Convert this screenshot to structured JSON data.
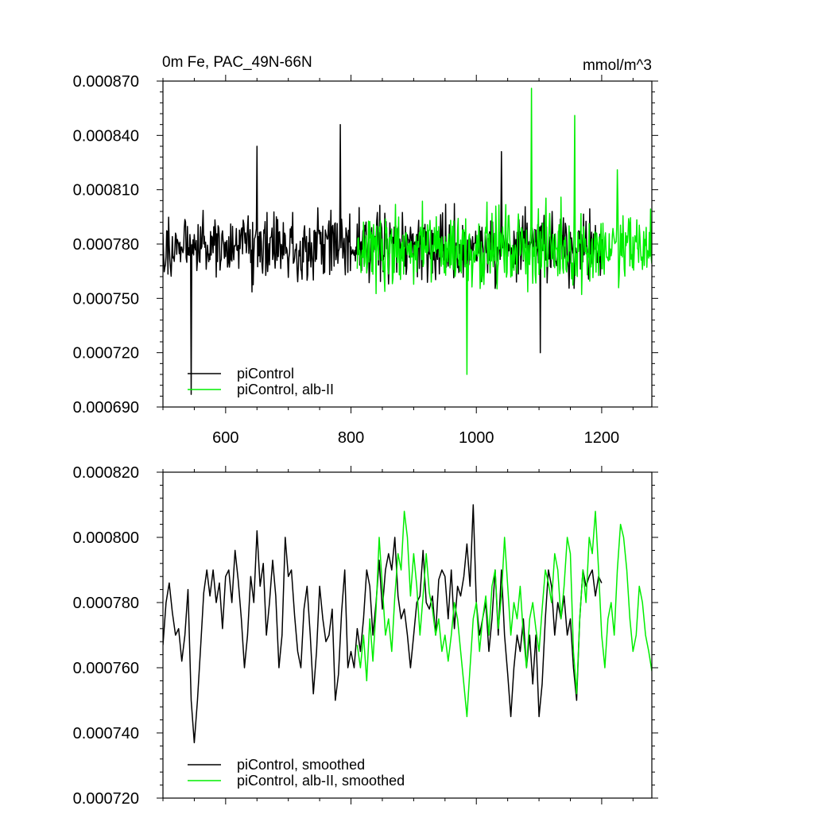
{
  "figure": {
    "title_left": "0m Fe, PAC_49N-66N",
    "title_right": "mmol/m^3"
  },
  "colors": {
    "picontrol": "#000000",
    "alb_ii": "#00ee00"
  },
  "chart_data": [
    {
      "type": "line",
      "title": "0m Fe, PAC_49N-66N",
      "units": "mmol/m^3",
      "xlim": [
        500,
        1280
      ],
      "ylim": [
        0.00069,
        0.00087
      ],
      "xticks": [
        600,
        800,
        1000,
        1200
      ],
      "xtick_labels": [
        "600",
        "800",
        "1000",
        "1200"
      ],
      "yticks": [
        0.00069,
        0.00072,
        0.00075,
        0.00078,
        0.00081,
        0.00084,
        0.00087
      ],
      "ytick_labels": [
        "0.000690",
        "0.000720",
        "0.000750",
        "0.000780",
        "0.000810",
        "0.000840",
        "0.000870"
      ],
      "legend_position": "bottom-left",
      "series": [
        {
          "name": "piControl",
          "color": "#000000",
          "x_start": 500,
          "x_end": 1200,
          "mean": 0.000778,
          "amplitude": 2.4e-05,
          "highlights": [
            [
              545,
              0.000697
            ],
            [
              783,
              0.000846
            ],
            [
              650,
              0.000834
            ],
            [
              1102,
              0.00072
            ],
            [
              1040,
              0.000831
            ]
          ]
        },
        {
          "name": "piControl, alb-II",
          "color": "#00ee00",
          "x_start": 810,
          "x_end": 1280,
          "mean": 0.000778,
          "amplitude": 2.7e-05,
          "highlights": [
            [
              1088,
              0.000866
            ],
            [
              1157,
              0.000851
            ],
            [
              985,
              0.000708
            ],
            [
              1225,
              0.000821
            ]
          ]
        }
      ]
    },
    {
      "type": "line",
      "xlim": [
        500,
        1280
      ],
      "ylim": [
        0.00072,
        0.00082
      ],
      "xticks": [
        600,
        800,
        1000,
        1200
      ],
      "yticks": [
        0.00072,
        0.00074,
        0.00076,
        0.00078,
        0.0008,
        0.00082
      ],
      "ytick_labels": [
        "0.000720",
        "0.000740",
        "0.000760",
        "0.000780",
        "0.000800",
        "0.000820"
      ],
      "legend_position": "bottom-left",
      "series": [
        {
          "name": "piControl, smoothed",
          "color": "#000000",
          "keypoints": [
            [
              500,
              0.000767
            ],
            [
              505,
              0.00078
            ],
            [
              510,
              0.000786
            ],
            [
              515,
              0.000777
            ],
            [
              520,
              0.00077
            ],
            [
              525,
              0.000772
            ],
            [
              530,
              0.000762
            ],
            [
              535,
              0.00077
            ],
            [
              540,
              0.000784
            ],
            [
              545,
              0.00075
            ],
            [
              550,
              0.000737
            ],
            [
              555,
              0.00075
            ],
            [
              560,
              0.000766
            ],
            [
              565,
              0.000783
            ],
            [
              570,
              0.00079
            ],
            [
              575,
              0.000782
            ],
            [
              580,
              0.00079
            ],
            [
              585,
              0.00078
            ],
            [
              590,
              0.000786
            ],
            [
              595,
              0.000772
            ],
            [
              600,
              0.000788
            ],
            [
              605,
              0.00079
            ],
            [
              610,
              0.00078
            ],
            [
              615,
              0.000796
            ],
            [
              620,
              0.000787
            ],
            [
              625,
              0.000775
            ],
            [
              630,
              0.00076
            ],
            [
              635,
              0.00077
            ],
            [
              640,
              0.000788
            ],
            [
              645,
              0.00078
            ],
            [
              650,
              0.000802
            ],
            [
              655,
              0.000785
            ],
            [
              660,
              0.000792
            ],
            [
              665,
              0.00077
            ],
            [
              670,
              0.00078
            ],
            [
              675,
              0.000793
            ],
            [
              680,
              0.000782
            ],
            [
              685,
              0.00076
            ],
            [
              690,
              0.00077
            ],
            [
              695,
              0.0008
            ],
            [
              700,
              0.000788
            ],
            [
              705,
              0.00079
            ],
            [
              710,
              0.000776
            ],
            [
              715,
              0.000765
            ],
            [
              720,
              0.00076
            ],
            [
              725,
              0.000778
            ],
            [
              730,
              0.000785
            ],
            [
              735,
              0.00077
            ],
            [
              740,
              0.000752
            ],
            [
              745,
              0.000765
            ],
            [
              750,
              0.000785
            ],
            [
              755,
              0.000775
            ],
            [
              760,
              0.000768
            ],
            [
              765,
              0.00077
            ],
            [
              770,
              0.000778
            ],
            [
              775,
              0.00075
            ],
            [
              780,
              0.000758
            ],
            [
              785,
              0.000777
            ],
            [
              790,
              0.00079
            ],
            [
              795,
              0.00076
            ],
            [
              800,
              0.000765
            ],
            [
              805,
              0.00076
            ],
            [
              810,
              0.000772
            ],
            [
              815,
              0.000765
            ],
            [
              820,
              0.000775
            ],
            [
              825,
              0.00079
            ],
            [
              830,
              0.000785
            ],
            [
              835,
              0.00077
            ],
            [
              840,
              0.00078
            ],
            [
              845,
              0.000793
            ],
            [
              850,
              0.000778
            ],
            [
              855,
              0.00079
            ],
            [
              860,
              0.000795
            ],
            [
              865,
              0.00079
            ],
            [
              870,
              0.0008
            ],
            [
              875,
              0.000782
            ],
            [
              880,
              0.000775
            ],
            [
              885,
              0.000778
            ],
            [
              890,
              0.00077
            ],
            [
              895,
              0.00076
            ],
            [
              900,
              0.00077
            ],
            [
              905,
              0.00078
            ],
            [
              910,
              0.000782
            ],
            [
              915,
              0.000796
            ],
            [
              920,
              0.00078
            ],
            [
              925,
              0.000778
            ],
            [
              930,
              0.000782
            ],
            [
              935,
              0.00077
            ],
            [
              940,
              0.000787
            ],
            [
              945,
              0.00079
            ],
            [
              950,
              0.000788
            ],
            [
              955,
              0.000775
            ],
            [
              960,
              0.00079
            ],
            [
              965,
              0.000772
            ],
            [
              970,
              0.000785
            ],
            [
              975,
              0.000782
            ],
            [
              980,
              0.000788
            ],
            [
              985,
              0.000798
            ],
            [
              990,
              0.000785
            ],
            [
              995,
              0.00081
            ],
            [
              1000,
              0.00078
            ],
            [
              1005,
              0.00077
            ],
            [
              1010,
              0.000775
            ],
            [
              1015,
              0.00078
            ],
            [
              1020,
              0.000765
            ],
            [
              1025,
              0.000775
            ],
            [
              1030,
              0.00079
            ],
            [
              1035,
              0.00077
            ],
            [
              1040,
              0.00079
            ],
            [
              1045,
              0.00077
            ],
            [
              1050,
              0.000758
            ],
            [
              1055,
              0.000745
            ],
            [
              1060,
              0.00076
            ],
            [
              1065,
              0.00077
            ],
            [
              1070,
              0.000765
            ],
            [
              1075,
              0.000775
            ],
            [
              1080,
              0.00076
            ],
            [
              1085,
              0.00077
            ],
            [
              1090,
              0.000755
            ],
            [
              1095,
              0.00077
            ],
            [
              1100,
              0.000745
            ],
            [
              1105,
              0.000755
            ],
            [
              1110,
              0.000775
            ],
            [
              1115,
              0.00079
            ],
            [
              1120,
              0.000785
            ],
            [
              1125,
              0.00077
            ],
            [
              1130,
              0.00078
            ],
            [
              1135,
              0.000775
            ],
            [
              1140,
              0.000782
            ],
            [
              1145,
              0.00077
            ],
            [
              1150,
              0.000775
            ],
            [
              1155,
              0.00076
            ],
            [
              1160,
              0.00075
            ],
            [
              1165,
              0.000775
            ],
            [
              1170,
              0.00079
            ],
            [
              1175,
              0.000785
            ],
            [
              1180,
              0.000788
            ],
            [
              1185,
              0.00079
            ],
            [
              1190,
              0.000782
            ],
            [
              1195,
              0.000788
            ],
            [
              1200,
              0.000786
            ]
          ]
        },
        {
          "name": "piControl, alb-II, smoothed",
          "color": "#00ee00",
          "keypoints": [
            [
              810,
              0.000767
            ],
            [
              815,
              0.00076
            ],
            [
              820,
              0.00077
            ],
            [
              825,
              0.000756
            ],
            [
              830,
              0.000775
            ],
            [
              835,
              0.000762
            ],
            [
              840,
              0.000778
            ],
            [
              845,
              0.0008
            ],
            [
              850,
              0.000785
            ],
            [
              855,
              0.00077
            ],
            [
              860,
              0.000775
            ],
            [
              865,
              0.000765
            ],
            [
              870,
              0.000782
            ],
            [
              875,
              0.000795
            ],
            [
              880,
              0.00079
            ],
            [
              885,
              0.000808
            ],
            [
              890,
              0.0008
            ],
            [
              895,
              0.000782
            ],
            [
              900,
              0.000795
            ],
            [
              905,
              0.000785
            ],
            [
              910,
              0.00077
            ],
            [
              915,
              0.000782
            ],
            [
              920,
              0.000795
            ],
            [
              925,
              0.000783
            ],
            [
              930,
              0.000778
            ],
            [
              935,
              0.00077
            ],
            [
              940,
              0.000775
            ],
            [
              945,
              0.000765
            ],
            [
              950,
              0.00077
            ],
            [
              955,
              0.000762
            ],
            [
              960,
              0.00077
            ],
            [
              965,
              0.00078
            ],
            [
              970,
              0.000775
            ],
            [
              975,
              0.000765
            ],
            [
              980,
              0.000755
            ],
            [
              985,
              0.000745
            ],
            [
              990,
              0.00076
            ],
            [
              995,
              0.000775
            ],
            [
              1000,
              0.00078
            ],
            [
              1005,
              0.000765
            ],
            [
              1010,
              0.000775
            ],
            [
              1015,
              0.000782
            ],
            [
              1020,
              0.00077
            ],
            [
              1025,
              0.000785
            ],
            [
              1030,
              0.00079
            ],
            [
              1035,
              0.000772
            ],
            [
              1040,
              0.000782
            ],
            [
              1045,
              0.0008
            ],
            [
              1050,
              0.000785
            ],
            [
              1055,
              0.00077
            ],
            [
              1060,
              0.00078
            ],
            [
              1065,
              0.000775
            ],
            [
              1070,
              0.000785
            ],
            [
              1075,
              0.00077
            ],
            [
              1080,
              0.00076
            ],
            [
              1085,
              0.000775
            ],
            [
              1090,
              0.00078
            ],
            [
              1095,
              0.000772
            ],
            [
              1100,
              0.000765
            ],
            [
              1105,
              0.000778
            ],
            [
              1110,
              0.00079
            ],
            [
              1115,
              0.000786
            ],
            [
              1120,
              0.00078
            ],
            [
              1125,
              0.000795
            ],
            [
              1130,
              0.00079
            ],
            [
              1135,
              0.000775
            ],
            [
              1140,
              0.000785
            ],
            [
              1145,
              0.0008
            ],
            [
              1150,
              0.000795
            ],
            [
              1155,
              0.000765
            ],
            [
              1160,
              0.000752
            ],
            [
              1165,
              0.000775
            ],
            [
              1170,
              0.00079
            ],
            [
              1175,
              0.00078
            ],
            [
              1180,
              0.0008
            ],
            [
              1185,
              0.000795
            ],
            [
              1190,
              0.000808
            ],
            [
              1195,
              0.00079
            ],
            [
              1200,
              0.00077
            ],
            [
              1205,
              0.00076
            ],
            [
              1210,
              0.000775
            ],
            [
              1215,
              0.00078
            ],
            [
              1220,
              0.00077
            ],
            [
              1225,
              0.00079
            ],
            [
              1230,
              0.000804
            ],
            [
              1235,
              0.0008
            ],
            [
              1240,
              0.00079
            ],
            [
              1245,
              0.000775
            ],
            [
              1250,
              0.000765
            ],
            [
              1255,
              0.00077
            ],
            [
              1260,
              0.000785
            ],
            [
              1265,
              0.00078
            ],
            [
              1270,
              0.00077
            ],
            [
              1275,
              0.000765
            ],
            [
              1280,
              0.000759
            ]
          ]
        }
      ]
    }
  ]
}
